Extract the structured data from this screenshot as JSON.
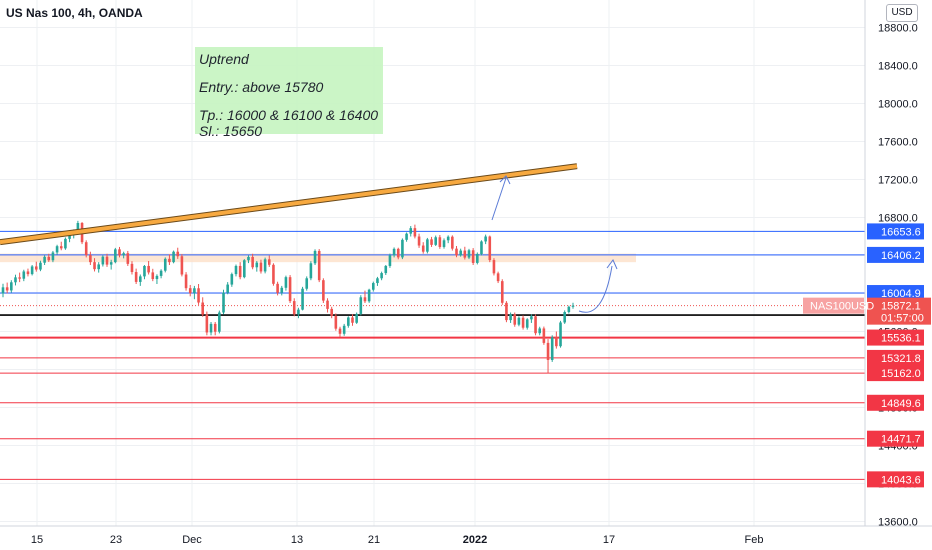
{
  "header": {
    "title": "US Nas 100, 4h, OANDA",
    "currency": "USD"
  },
  "annotation": {
    "lines": [
      "Uptrend",
      "Entry.: above 15780",
      "Tp.: 16000 & 16100 & 16400",
      "Sl.: 15650"
    ]
  },
  "colors": {
    "up": "#26a69a",
    "down": "#ef5350",
    "blue_level": "#2962ff",
    "red_level": "#f23645",
    "trendline": "#f7a940",
    "zone": "#fde0c8",
    "note_bg": "#c9f5c4",
    "arrow": "#5b7bd6"
  },
  "chart_data": {
    "type": "candlestick",
    "symbol": "NAS100USD",
    "y_axis_ticks": [
      13600.0,
      14000.0,
      14400.0,
      14800.0,
      15200.0,
      15600.0,
      16000.0,
      16400.0,
      16800.0,
      17200.0,
      17600.0,
      18000.0,
      18400.0,
      18800.0
    ],
    "ylim": [
      13540,
      18900
    ],
    "x_axis_labels": [
      "15",
      "23",
      "Dec",
      "13",
      "21",
      "2022",
      "17",
      "Feb"
    ],
    "last_price": {
      "value": "15872.1",
      "countdown": "01:57:00",
      "symbol_label": "NAS100USD"
    },
    "price_levels": [
      {
        "value": 16653.6,
        "label": "16653.6",
        "style": "blue"
      },
      {
        "value": 16406.2,
        "label": "16406.2",
        "style": "blue"
      },
      {
        "value": 16004.9,
        "label": "16004.9",
        "style": "blue"
      },
      {
        "value": 15773.1,
        "label": "15773.1",
        "style": "black"
      },
      {
        "value": 15536.1,
        "label": "15536.1",
        "style": "red"
      },
      {
        "value": 15321.8,
        "label": "15321.8",
        "style": "red"
      },
      {
        "value": 15162.0,
        "label": "15162.0",
        "style": "red"
      },
      {
        "value": 14849.6,
        "label": "14849.6",
        "style": "red"
      },
      {
        "value": 14471.7,
        "label": "14471.7",
        "style": "red"
      },
      {
        "value": 14043.6,
        "label": "14043.6",
        "style": "red"
      }
    ],
    "resistance_zone": [
      16330,
      16420
    ],
    "trendline": {
      "from_price": 16540,
      "to_price": 17340
    },
    "series": [
      {
        "values": [
          [
            16001,
            16102,
            15960,
            16065
          ],
          [
            16065,
            16115,
            16002,
            16032
          ],
          [
            16032,
            16140,
            16008,
            16118
          ],
          [
            16118,
            16198,
            16085,
            16170
          ],
          [
            16170,
            16220,
            16120,
            16156
          ],
          [
            16156,
            16250,
            16130,
            16232
          ],
          [
            16232,
            16262,
            16180,
            16204
          ],
          [
            16204,
            16300,
            16190,
            16285
          ],
          [
            16285,
            16335,
            16230,
            16252
          ],
          [
            16252,
            16345,
            16235,
            16324
          ],
          [
            16324,
            16402,
            16300,
            16386
          ],
          [
            16386,
            16418,
            16332,
            16350
          ],
          [
            16350,
            16448,
            16330,
            16432
          ],
          [
            16432,
            16513,
            16410,
            16498
          ],
          [
            16498,
            16545,
            16455,
            16475
          ],
          [
            16475,
            16590,
            16460,
            16575
          ],
          [
            16575,
            16640,
            16540,
            16614
          ],
          [
            16614,
            16675,
            16580,
            16655
          ],
          [
            16655,
            16765,
            16635,
            16742
          ],
          [
            16742,
            16752,
            16520,
            16540
          ],
          [
            16540,
            16560,
            16380,
            16404
          ],
          [
            16404,
            16440,
            16300,
            16330
          ],
          [
            16330,
            16372,
            16232,
            16256
          ],
          [
            16256,
            16330,
            16220,
            16306
          ],
          [
            16306,
            16402,
            16284,
            16388
          ],
          [
            16388,
            16418,
            16280,
            16304
          ],
          [
            16304,
            16355,
            16252,
            16330
          ],
          [
            16330,
            16480,
            16318,
            16465
          ],
          [
            16465,
            16490,
            16380,
            16402
          ],
          [
            16402,
            16440,
            16370,
            16424
          ],
          [
            16424,
            16448,
            16290,
            16312
          ],
          [
            16312,
            16340,
            16200,
            16226
          ],
          [
            16226,
            16262,
            16100,
            16122
          ],
          [
            16122,
            16200,
            16080,
            16180
          ],
          [
            16180,
            16300,
            16150,
            16290
          ],
          [
            16290,
            16342,
            16200,
            16222
          ],
          [
            16222,
            16260,
            16130,
            16152
          ],
          [
            16152,
            16202,
            16100,
            16185
          ],
          [
            16185,
            16255,
            16160,
            16240
          ],
          [
            16240,
            16380,
            16222,
            16365
          ],
          [
            16365,
            16412,
            16300,
            16330
          ],
          [
            16330,
            16452,
            16318,
            16440
          ],
          [
            16440,
            16482,
            16364,
            16392
          ],
          [
            16392,
            16414,
            16180,
            16200
          ],
          [
            16200,
            16225,
            16030,
            16056
          ],
          [
            16056,
            16090,
            15970,
            16004
          ],
          [
            16004,
            16080,
            15940,
            16055
          ],
          [
            16055,
            16100,
            15880,
            15905
          ],
          [
            15905,
            15960,
            15755,
            15778
          ],
          [
            15778,
            15810,
            15560,
            15590
          ],
          [
            15590,
            15700,
            15560,
            15680
          ],
          [
            15680,
            15700,
            15560,
            15598
          ],
          [
            15598,
            15820,
            15580,
            15800
          ],
          [
            15800,
            16040,
            15780,
            16010
          ],
          [
            16010,
            16120,
            15992,
            16094
          ],
          [
            16094,
            16220,
            16070,
            16204
          ],
          [
            16204,
            16305,
            16180,
            16290
          ],
          [
            16290,
            16330,
            16150,
            16172
          ],
          [
            16172,
            16362,
            16160,
            16350
          ],
          [
            16350,
            16402,
            16320,
            16385
          ],
          [
            16385,
            16418,
            16255,
            16276
          ],
          [
            16276,
            16342,
            16230,
            16325
          ],
          [
            16325,
            16356,
            16210,
            16232
          ],
          [
            16232,
            16378,
            16212,
            16360
          ],
          [
            16360,
            16400,
            16280,
            16302
          ],
          [
            16302,
            16318,
            16082,
            16102
          ],
          [
            16102,
            16124,
            15980,
            16008
          ],
          [
            16008,
            16080,
            15980,
            16060
          ],
          [
            16060,
            16188,
            16030,
            16172
          ],
          [
            16172,
            16194,
            15900,
            15920
          ],
          [
            15920,
            15950,
            15760,
            15782
          ],
          [
            15782,
            15850,
            15740,
            15830
          ],
          [
            15830,
            16070,
            15822,
            16050
          ],
          [
            16050,
            16180,
            16030,
            16160
          ],
          [
            16160,
            16340,
            16140,
            16318
          ],
          [
            16318,
            16465,
            16300,
            16448
          ],
          [
            16448,
            16468,
            16120,
            16140
          ],
          [
            16140,
            16160,
            15900,
            15925
          ],
          [
            15925,
            15950,
            15800,
            15838
          ],
          [
            15838,
            15860,
            15740,
            15765
          ],
          [
            15765,
            15790,
            15608,
            15630
          ],
          [
            15630,
            15650,
            15545,
            15576
          ],
          [
            15576,
            15680,
            15555,
            15660
          ],
          [
            15660,
            15760,
            15640,
            15748
          ],
          [
            15748,
            15782,
            15660,
            15692
          ],
          [
            15692,
            15800,
            15680,
            15785
          ],
          [
            15785,
            15982,
            15770,
            15960
          ],
          [
            15960,
            16030,
            15900,
            15918
          ],
          [
            15918,
            16050,
            15902,
            16040
          ],
          [
            16040,
            16125,
            16020,
            16110
          ],
          [
            16110,
            16175,
            16080,
            16160
          ],
          [
            16160,
            16230,
            16140,
            16215
          ],
          [
            16215,
            16300,
            16195,
            16290
          ],
          [
            16290,
            16420,
            16270,
            16402
          ],
          [
            16402,
            16485,
            16380,
            16470
          ],
          [
            16470,
            16482,
            16360,
            16380
          ],
          [
            16380,
            16580,
            16362,
            16565
          ],
          [
            16565,
            16642,
            16545,
            16630
          ],
          [
            16630,
            16710,
            16600,
            16688
          ],
          [
            16688,
            16725,
            16580,
            16600
          ],
          [
            16600,
            16630,
            16480,
            16505
          ],
          [
            16505,
            16540,
            16420,
            16440
          ],
          [
            16440,
            16585,
            16422,
            16570
          ],
          [
            16570,
            16596,
            16490,
            16512
          ],
          [
            16512,
            16610,
            16500,
            16592
          ],
          [
            16592,
            16616,
            16470,
            16490
          ],
          [
            16490,
            16580,
            16472,
            16560
          ],
          [
            16560,
            16612,
            16530,
            16598
          ],
          [
            16598,
            16612,
            16452,
            16472
          ],
          [
            16472,
            16500,
            16382,
            16402
          ],
          [
            16402,
            16472,
            16388,
            16452
          ],
          [
            16452,
            16492,
            16358,
            16378
          ],
          [
            16378,
            16470,
            16362,
            16455
          ],
          [
            16455,
            16478,
            16300,
            16322
          ],
          [
            16322,
            16432,
            16306,
            16416
          ],
          [
            16416,
            16560,
            16400,
            16548
          ],
          [
            16548,
            16620,
            16520,
            16600
          ],
          [
            16600,
            16610,
            16330,
            16352
          ],
          [
            16352,
            16372,
            16190,
            16212
          ],
          [
            16212,
            16230,
            16110,
            16130
          ],
          [
            16130,
            16150,
            15880,
            15902
          ],
          [
            15902,
            15920,
            15698,
            15720
          ],
          [
            15720,
            15800,
            15690,
            15780
          ],
          [
            15780,
            15800,
            15650,
            15672
          ],
          [
            15672,
            15760,
            15655,
            15745
          ],
          [
            15745,
            15770,
            15620,
            15640
          ],
          [
            15640,
            15740,
            15620,
            15728
          ],
          [
            15728,
            15780,
            15690,
            15760
          ],
          [
            15760,
            15778,
            15560,
            15582
          ],
          [
            15582,
            15650,
            15560,
            15632
          ],
          [
            15632,
            15652,
            15460,
            15480
          ],
          [
            15480,
            15520,
            15160,
            15300
          ],
          [
            15300,
            15560,
            15280,
            15540
          ],
          [
            15540,
            15600,
            15420,
            15445
          ],
          [
            15445,
            15712,
            15430,
            15695
          ],
          [
            15695,
            15822,
            15680,
            15805
          ],
          [
            15805,
            15872,
            15790,
            15860
          ],
          [
            15860,
            15902,
            15840,
            15872
          ]
        ]
      }
    ]
  }
}
